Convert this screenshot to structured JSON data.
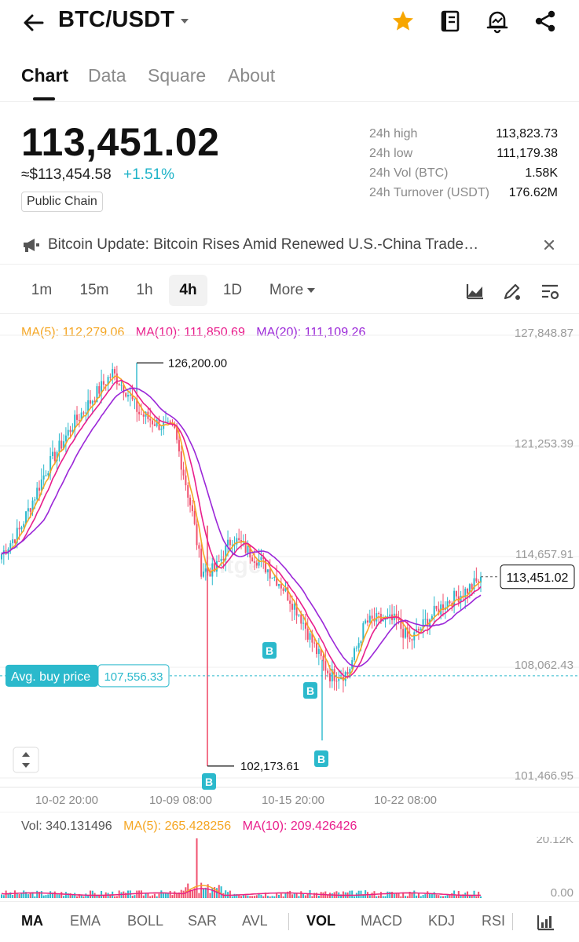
{
  "header": {
    "pair": "BTC/USDT",
    "icons": [
      "back-arrow-icon",
      "caret-down-icon",
      "star-icon",
      "notebook-icon",
      "price-alert-icon",
      "share-icon"
    ],
    "star_color": "#f7a600"
  },
  "tabs": [
    {
      "label": "Chart",
      "active": true
    },
    {
      "label": "Data",
      "active": false
    },
    {
      "label": "Square",
      "active": false
    },
    {
      "label": "About",
      "active": false
    }
  ],
  "ticker": {
    "last_price": "113,451.02",
    "fiat_price": "≈$113,454.58",
    "change_pct": "+1.51%",
    "badge": "Public Chain"
  },
  "stats": [
    {
      "label": "24h high",
      "value": "113,823.73"
    },
    {
      "label": "24h low",
      "value": "111,179.38"
    },
    {
      "label": "24h Vol (BTC)",
      "value": "1.58K"
    },
    {
      "label": "24h Turnover (USDT)",
      "value": "176.62M"
    }
  ],
  "news": {
    "text": "Bitcoin Update: Bitcoin Rises Amid Renewed U.S.-China Trade…"
  },
  "intervals": [
    {
      "label": "1m",
      "active": false
    },
    {
      "label": "15m",
      "active": false
    },
    {
      "label": "1h",
      "active": false
    },
    {
      "label": "4h",
      "active": true
    },
    {
      "label": "1D",
      "active": false
    },
    {
      "label": "More",
      "active": false
    }
  ],
  "chart_data": {
    "type": "candlestick",
    "ma_legend": [
      {
        "label": "MA(5): 112,279.06",
        "color": "#f5a623"
      },
      {
        "label": "MA(10): 111,850.69",
        "color": "#e91e8c"
      },
      {
        "label": "MA(20): 111,109.26",
        "color": "#9b27d8"
      }
    ],
    "y_ticks": [
      "127,848.87",
      "121,253.39",
      "114,657.91",
      "108,062.43",
      "101,466.95"
    ],
    "y_tick_values": [
      127848.87,
      121253.39,
      114657.91,
      108062.43,
      101466.95
    ],
    "x_ticks": [
      "10-02 20:00",
      "10-09 08:00",
      "10-15 20:00",
      "10-22 08:00"
    ],
    "watermark": "Bitget",
    "high_marker": {
      "label": "126,200.00",
      "value": 126200.0
    },
    "low_marker": {
      "label": "102,173.61",
      "value": 102173.61
    },
    "current_price": {
      "label": "113,451.02",
      "value": 113451.02
    },
    "avg_buy": {
      "label": "Avg. buy price",
      "value_label": "107,556.33",
      "value": 107556.33
    },
    "buy_markers": [
      "B",
      "B",
      "B",
      "B"
    ],
    "up_color": "#2bb9cc",
    "down_color": "#f0506e",
    "volume": {
      "legend": [
        {
          "label": "Vol: 340.131496",
          "color": "#555555"
        },
        {
          "label": "MA(5): 265.428256",
          "color": "#f5a623"
        },
        {
          "label": "MA(10): 209.426426",
          "color": "#e91e8c"
        }
      ],
      "y_ticks": [
        "20.12K",
        "0.00"
      ]
    }
  },
  "indicators": [
    {
      "label": "MA",
      "active": true
    },
    {
      "label": "EMA",
      "active": false
    },
    {
      "label": "BOLL",
      "active": false
    },
    {
      "label": "SAR",
      "active": false
    },
    {
      "label": "AVL",
      "active": false
    },
    {
      "label": "VOL",
      "active": true
    },
    {
      "label": "MACD",
      "active": false
    },
    {
      "label": "KDJ",
      "active": false
    },
    {
      "label": "RSI",
      "active": false
    }
  ]
}
